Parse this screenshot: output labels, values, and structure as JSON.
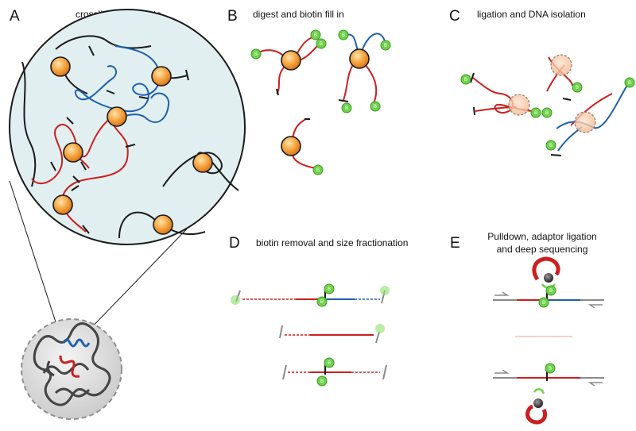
{
  "panels": {
    "a": {
      "letter": "A",
      "title": "crosslink and isolate"
    },
    "b": {
      "letter": "B",
      "title": "digest and biotin fill in"
    },
    "c": {
      "letter": "C",
      "title": "ligation and DNA isolation"
    },
    "d": {
      "letter": "D",
      "title": "biotin removal and size fractionation"
    },
    "e": {
      "letter": "E",
      "title_line1": "Pulldown, adaptor ligation",
      "title_line2": "and deep sequencing"
    }
  },
  "biotin_label": "B",
  "colors": {
    "red": "#cc1f1f",
    "blue": "#1f5fb0",
    "black": "#1a1a1a",
    "gray": "#8a8a8a",
    "protein_orange": "#f39a35",
    "biotin_green": "#6fd24a",
    "circle_fill": "#e2eff0"
  },
  "icons": [
    "protein-icon",
    "biotin-icon",
    "streptavidin-bead-icon",
    "adaptor-arrow-icon",
    "nucleus-icon"
  ]
}
